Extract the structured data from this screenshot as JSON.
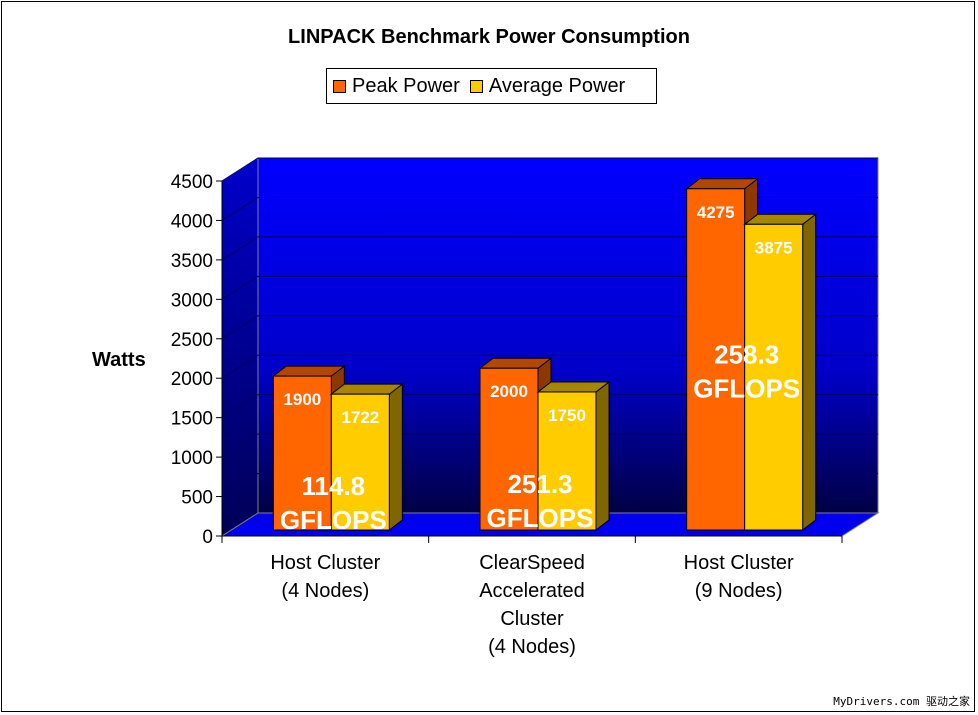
{
  "chart_data": {
    "type": "bar",
    "title": "LINPACK Benchmark Power Consumption",
    "xlabel": "",
    "ylabel": "Watts",
    "ylim": [
      0,
      4500
    ],
    "yticks": [
      0,
      500,
      1000,
      1500,
      2000,
      2500,
      3000,
      3500,
      4000,
      4500
    ],
    "grid": true,
    "legend_position": "top-center",
    "categories": [
      [
        "Host Cluster",
        "(4 Nodes)"
      ],
      [
        "ClearSpeed",
        "Accelerated",
        "Cluster",
        "(4 Nodes)"
      ],
      [
        "Host Cluster",
        "(9 Nodes)"
      ]
    ],
    "series": [
      {
        "name": "Peak Power",
        "color": "#ff6600",
        "values": [
          1900,
          2000,
          4275
        ]
      },
      {
        "name": "Average Power",
        "color": "#ffcc00",
        "values": [
          1722,
          1750,
          3875
        ]
      }
    ],
    "annotations": [
      [
        "114.8",
        "GFLOPS"
      ],
      [
        "251.3",
        "GFLOPS"
      ],
      [
        "258.3",
        "GFLOPS"
      ]
    ],
    "plot_background": "#0000ff"
  },
  "watermark": "MyDrivers.com 驱动之家"
}
